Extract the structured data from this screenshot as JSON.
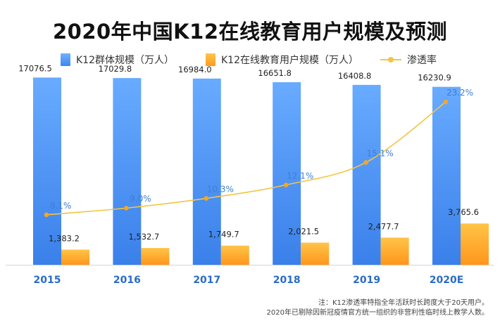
{
  "title": "2020年中国K12在线教育用户规模及预测",
  "legend": {
    "base": "K12群体规模（万人）",
    "online": "K12在线教育用户规模（万人）",
    "rate": "渗透率"
  },
  "chart_data": {
    "type": "bar",
    "title": "2020年中国K12在线教育用户规模及预测",
    "categories": [
      "2015",
      "2016",
      "2017",
      "2018",
      "2019",
      "2020E"
    ],
    "series": [
      {
        "name": "K12群体规模（万人）",
        "type": "bar",
        "values": [
          17076.5,
          17029.8,
          16984.0,
          16651.8,
          16408.8,
          16230.9
        ],
        "labels": [
          "17076.5",
          "17029.8",
          "16984.0",
          "16651.8",
          "16408.8",
          "16230.9"
        ],
        "color": "#4a90f0"
      },
      {
        "name": "K12在线教育用户规模（万人）",
        "type": "bar",
        "values": [
          1383.2,
          1532.7,
          1749.7,
          2021.5,
          2477.7,
          3765.6
        ],
        "labels": [
          "1,383.2",
          "1,532.7",
          "1,749.7",
          "2,021.5",
          "2,477.7",
          "3,765.6"
        ],
        "color": "#ffa726"
      },
      {
        "name": "渗透率",
        "type": "line",
        "values": [
          8.1,
          9.0,
          10.3,
          12.1,
          15.1,
          23.2
        ],
        "labels": [
          "8.1%",
          "9.0%",
          "10.3%",
          "12.1%",
          "15.1%",
          "23.2%"
        ],
        "color": "#f3c542"
      }
    ],
    "ylim": [
      0,
      18000
    ],
    "rate_ylim": [
      0,
      25
    ],
    "grid": false,
    "legend_position": "top"
  },
  "note": {
    "line1": "注：K12渗透率特指全年活跃时长跨度大于20天用户。",
    "line2": "2020年已剔除因新冠疫情官方统一组织的非营利性临时线上教学人数。"
  }
}
